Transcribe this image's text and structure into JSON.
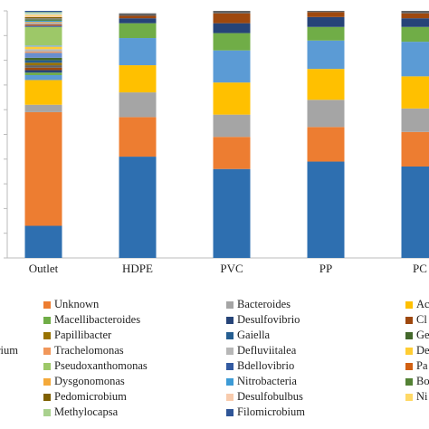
{
  "chart_data": {
    "type": "stacked_bar",
    "categories": [
      "Outlet",
      "HDPE",
      "PVC",
      "PP",
      "PC"
    ],
    "ylim": [
      0,
      100
    ],
    "yticks": [
      0,
      10,
      20,
      30,
      40,
      50,
      60,
      70,
      80,
      90,
      100
    ],
    "series": [
      {
        "name": null,
        "color": "#2e6fb0",
        "values": [
          13,
          41,
          36,
          39,
          37
        ]
      },
      {
        "name": "Unknown",
        "color": "#ed7d31",
        "values": [
          46,
          16,
          13,
          14,
          14
        ]
      },
      {
        "name": "Bacteroides",
        "color": "#a5a5a5",
        "values": [
          3,
          10,
          9,
          11,
          9.5
        ]
      },
      {
        "name": "Ac",
        "color": "#ffc000",
        "values": [
          10,
          11,
          13,
          12.5,
          13
        ]
      },
      {
        "name": null,
        "color": "#5b9bd5",
        "values": [
          2,
          11,
          13,
          11.5,
          14
        ]
      },
      {
        "name": "Macellibacteroides",
        "color": "#70ad47",
        "values": [
          1,
          6,
          7,
          5.5,
          6
        ]
      },
      {
        "name": "Desulfovibrio",
        "color": "#264478",
        "values": [
          1,
          2,
          4,
          4,
          3.5
        ]
      },
      {
        "name": "Cl",
        "color": "#9e480e",
        "values": [
          1,
          1,
          4,
          2,
          2
        ]
      },
      {
        "name": null,
        "color": "#636363",
        "values": [
          1,
          1,
          1,
          0.5,
          1
        ]
      },
      {
        "name": "Papillibacter",
        "color": "#997300",
        "values": [
          1,
          0,
          0,
          0,
          0
        ]
      },
      {
        "name": "Gaiella",
        "color": "#255e91",
        "values": [
          1,
          0,
          0,
          0,
          0
        ]
      },
      {
        "name": "Ge",
        "color": "#43682b",
        "values": [
          1,
          0,
          0,
          0,
          0
        ]
      },
      {
        "name": "erium",
        "color": "#698ed0",
        "values": [
          2,
          0,
          0,
          0,
          0
        ]
      },
      {
        "name": "Trachelomonas",
        "color": "#f1975a",
        "values": [
          0.5,
          0,
          0,
          0,
          0
        ]
      },
      {
        "name": "Defluviitalea",
        "color": "#b7b7b7",
        "values": [
          1,
          0,
          0,
          0,
          0
        ]
      },
      {
        "name": "De",
        "color": "#ffcd33",
        "values": [
          1,
          0,
          0,
          0,
          0
        ]
      },
      {
        "name": null,
        "color": "#7cafdd",
        "values": [
          0.5,
          0,
          0,
          0,
          0
        ]
      },
      {
        "name": "Pseudoxanthomonas",
        "color": "#9dc868",
        "values": [
          7.5,
          0,
          0,
          0,
          0
        ]
      },
      {
        "name": "Bdellovibrio",
        "color": "#335aa1",
        "values": [
          0.5,
          0,
          0,
          0,
          0
        ]
      },
      {
        "name": "Pa",
        "color": "#d26012",
        "values": [
          0.5,
          0,
          0,
          0,
          0
        ]
      },
      {
        "name": null,
        "color": "#8faadc",
        "values": [
          0.5,
          0,
          0,
          0,
          0
        ]
      },
      {
        "name": "Dysgonomonas",
        "color": "#f4a93a",
        "values": [
          0.5,
          0,
          0,
          0,
          0
        ]
      },
      {
        "name": "Nitrobacteria",
        "color": "#3d9bd6",
        "values": [
          0.5,
          0,
          0,
          0,
          0
        ]
      },
      {
        "name": "Bo",
        "color": "#548235",
        "values": [
          0.5,
          0,
          0,
          0,
          0
        ]
      },
      {
        "name": null,
        "color": "#7f7f7f",
        "values": [
          0.5,
          0,
          0,
          0,
          0
        ]
      },
      {
        "name": "Pedomicrobium",
        "color": "#7f6000",
        "values": [
          0.5,
          0,
          0,
          0,
          0
        ]
      },
      {
        "name": "Desulfobulbus",
        "color": "#f8cbad",
        "values": [
          0.5,
          0,
          0,
          0,
          0
        ]
      },
      {
        "name": "Ni",
        "color": "#ffd966",
        "values": [
          0.5,
          0,
          0,
          0,
          0
        ]
      },
      {
        "name": null,
        "color": "#bdd7ee",
        "values": [
          0.5,
          0,
          0,
          0,
          0
        ]
      },
      {
        "name": "Methylocapsa",
        "color": "#a9d18e",
        "values": [
          0.5,
          0,
          0,
          0,
          0
        ]
      },
      {
        "name": "Filomicrobium",
        "color": "#2f5597",
        "values": [
          0.5,
          0,
          0,
          0,
          0
        ]
      }
    ]
  }
}
